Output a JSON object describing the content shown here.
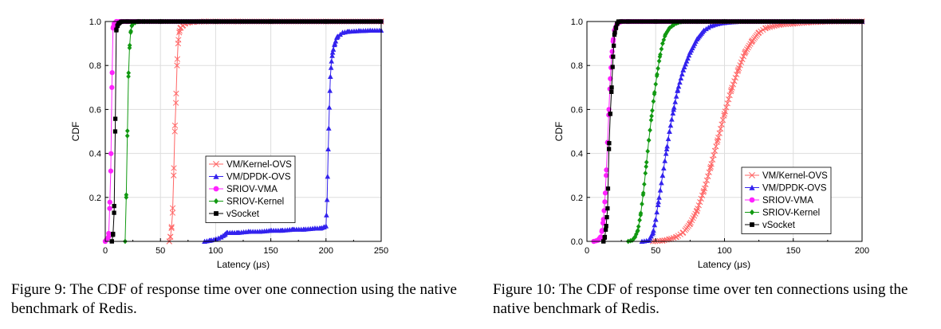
{
  "colors": {
    "VM/Kernel-OVS": "#ff6666",
    "VM/DPDK-OVS": "#3322ee",
    "SRIOV-VMA": "#ff22ff",
    "SRIOV-Kernel": "#119911",
    "vSocket": "#000000"
  },
  "markers": {
    "VM/Kernel-OVS": "x",
    "VM/DPDK-OVS": "triangle",
    "SRIOV-VMA": "circle",
    "SRIOV-Kernel": "diamond",
    "vSocket": "square"
  },
  "captions": [
    "Figure 9:  The CDF of response time over one connection using the native benchmark of Redis.",
    "Figure 10: The CDF of response time over ten connections using the native benchmark of Redis."
  ],
  "chart_data": [
    {
      "type": "line",
      "xlabel": "Latency (μs)",
      "ylabel": "CDF",
      "xlim": [
        0,
        250
      ],
      "ylim": [
        0,
        1.0
      ],
      "xticks": [
        "0",
        "50",
        "100",
        "150",
        "200",
        "250"
      ],
      "yticks": [
        "0.2",
        "0.4",
        "0.6",
        "0.8",
        "1.0"
      ],
      "grid": true,
      "legend_position": "lower-right",
      "series": [
        {
          "name": "VM/Kernel-OVS",
          "x": [
            58,
            59,
            60,
            61,
            62,
            63,
            64,
            65,
            66,
            67,
            68,
            70,
            72,
            75,
            80,
            90,
            100,
            120,
            150,
            200,
            250
          ],
          "y": [
            0.0,
            0.02,
            0.06,
            0.13,
            0.3,
            0.5,
            0.63,
            0.8,
            0.9,
            0.95,
            0.97,
            0.98,
            0.99,
            0.995,
            0.998,
            1.0,
            1.0,
            1.0,
            1.0,
            1.0,
            1.0
          ]
        },
        {
          "name": "VM/DPDK-OVS",
          "x": [
            90,
            95,
            100,
            105,
            108,
            110,
            115,
            120,
            130,
            140,
            150,
            160,
            170,
            180,
            190,
            195,
            198,
            200,
            201,
            202,
            203,
            204,
            205,
            206,
            208,
            210,
            215,
            220,
            230,
            240,
            250
          ],
          "y": [
            0.0,
            0.005,
            0.01,
            0.02,
            0.03,
            0.04,
            0.04,
            0.04,
            0.045,
            0.045,
            0.05,
            0.05,
            0.055,
            0.055,
            0.06,
            0.06,
            0.065,
            0.07,
            0.19,
            0.42,
            0.61,
            0.75,
            0.82,
            0.86,
            0.9,
            0.93,
            0.95,
            0.955,
            0.958,
            0.96,
            0.96
          ]
        },
        {
          "name": "SRIOV-VMA",
          "x": [
            0,
            3,
            4,
            5,
            6,
            7,
            8,
            9,
            10,
            15,
            20,
            30,
            50,
            100,
            150,
            200,
            250
          ],
          "y": [
            0.0,
            0.02,
            0.15,
            0.32,
            0.7,
            0.97,
            0.99,
            0.995,
            1.0,
            1.0,
            1.0,
            1.0,
            1.0,
            1.0,
            1.0,
            1.0,
            1.0
          ]
        },
        {
          "name": "SRIOV-Kernel",
          "x": [
            18,
            19,
            20,
            21,
            22,
            23,
            24,
            25,
            27,
            30,
            35,
            40,
            50,
            100,
            150,
            200,
            250
          ],
          "y": [
            0.0,
            0.2,
            0.48,
            0.75,
            0.88,
            0.95,
            0.98,
            0.99,
            0.995,
            1.0,
            1.0,
            1.0,
            1.0,
            1.0,
            1.0,
            1.0,
            1.0
          ]
        },
        {
          "name": "vSocket",
          "x": [
            6,
            7,
            8,
            9,
            10,
            11,
            12,
            13,
            15,
            20,
            30,
            50,
            100,
            150,
            200,
            250
          ],
          "y": [
            0.0,
            0.03,
            0.13,
            0.5,
            0.96,
            0.98,
            0.99,
            0.995,
            1.0,
            1.0,
            1.0,
            1.0,
            1.0,
            1.0,
            1.0,
            1.0
          ]
        }
      ]
    },
    {
      "type": "line",
      "xlabel": "Latency (μs)",
      "ylabel": "CDF",
      "xlim": [
        0,
        200
      ],
      "ylim": [
        0,
        1.0
      ],
      "xticks": [
        "0",
        "50",
        "100",
        "150",
        "200"
      ],
      "yticks": [
        "0.0",
        "0.2",
        "0.4",
        "0.6",
        "0.8",
        "1.0"
      ],
      "grid": true,
      "legend_position": "lower-right",
      "series": [
        {
          "name": "VM/Kernel-OVS",
          "x": [
            48,
            55,
            60,
            65,
            70,
            75,
            80,
            85,
            90,
            95,
            100,
            105,
            110,
            115,
            120,
            125,
            130,
            140,
            150,
            160,
            170,
            180,
            200
          ],
          "y": [
            0.0,
            0.003,
            0.01,
            0.02,
            0.04,
            0.08,
            0.14,
            0.23,
            0.34,
            0.46,
            0.58,
            0.69,
            0.78,
            0.86,
            0.91,
            0.95,
            0.97,
            0.985,
            0.99,
            0.995,
            0.998,
            1.0,
            1.0
          ]
        },
        {
          "name": "VM/DPDK-OVS",
          "x": [
            40,
            45,
            48,
            50,
            52,
            55,
            58,
            60,
            63,
            66,
            70,
            75,
            80,
            85,
            90,
            95,
            100,
            110,
            120,
            150,
            200
          ],
          "y": [
            0.0,
            0.005,
            0.04,
            0.1,
            0.18,
            0.3,
            0.42,
            0.5,
            0.6,
            0.69,
            0.78,
            0.86,
            0.92,
            0.96,
            0.98,
            0.99,
            0.995,
            1.0,
            1.0,
            1.0,
            1.0
          ]
        },
        {
          "name": "SRIOV-VMA",
          "x": [
            5,
            8,
            10,
            11,
            12,
            13,
            14,
            15,
            16,
            17,
            18,
            19,
            20,
            22,
            25,
            30,
            40,
            60,
            100,
            150,
            200
          ],
          "y": [
            0.0,
            0.005,
            0.02,
            0.05,
            0.1,
            0.18,
            0.3,
            0.45,
            0.6,
            0.74,
            0.84,
            0.91,
            0.96,
            0.99,
            1.0,
            1.0,
            1.0,
            1.0,
            1.0,
            1.0,
            1.0
          ]
        },
        {
          "name": "SRIOV-Kernel",
          "x": [
            30,
            33,
            35,
            37,
            39,
            41,
            43,
            45,
            47,
            49,
            51,
            53,
            55,
            57,
            60,
            63,
            66,
            70,
            80,
            100,
            150,
            200
          ],
          "y": [
            0.0,
            0.005,
            0.02,
            0.05,
            0.12,
            0.22,
            0.34,
            0.46,
            0.57,
            0.67,
            0.76,
            0.84,
            0.9,
            0.94,
            0.97,
            0.985,
            0.995,
            1.0,
            1.0,
            1.0,
            1.0,
            1.0
          ]
        },
        {
          "name": "vSocket",
          "x": [
            12,
            13,
            14,
            15,
            16,
            17,
            18,
            19,
            20,
            21,
            22,
            23,
            25,
            30,
            50,
            100,
            150,
            200
          ],
          "y": [
            0.0,
            0.02,
            0.07,
            0.15,
            0.42,
            0.58,
            0.7,
            0.84,
            0.94,
            0.97,
            0.99,
            1.0,
            1.0,
            1.0,
            1.0,
            1.0,
            1.0,
            1.0
          ]
        }
      ]
    }
  ]
}
